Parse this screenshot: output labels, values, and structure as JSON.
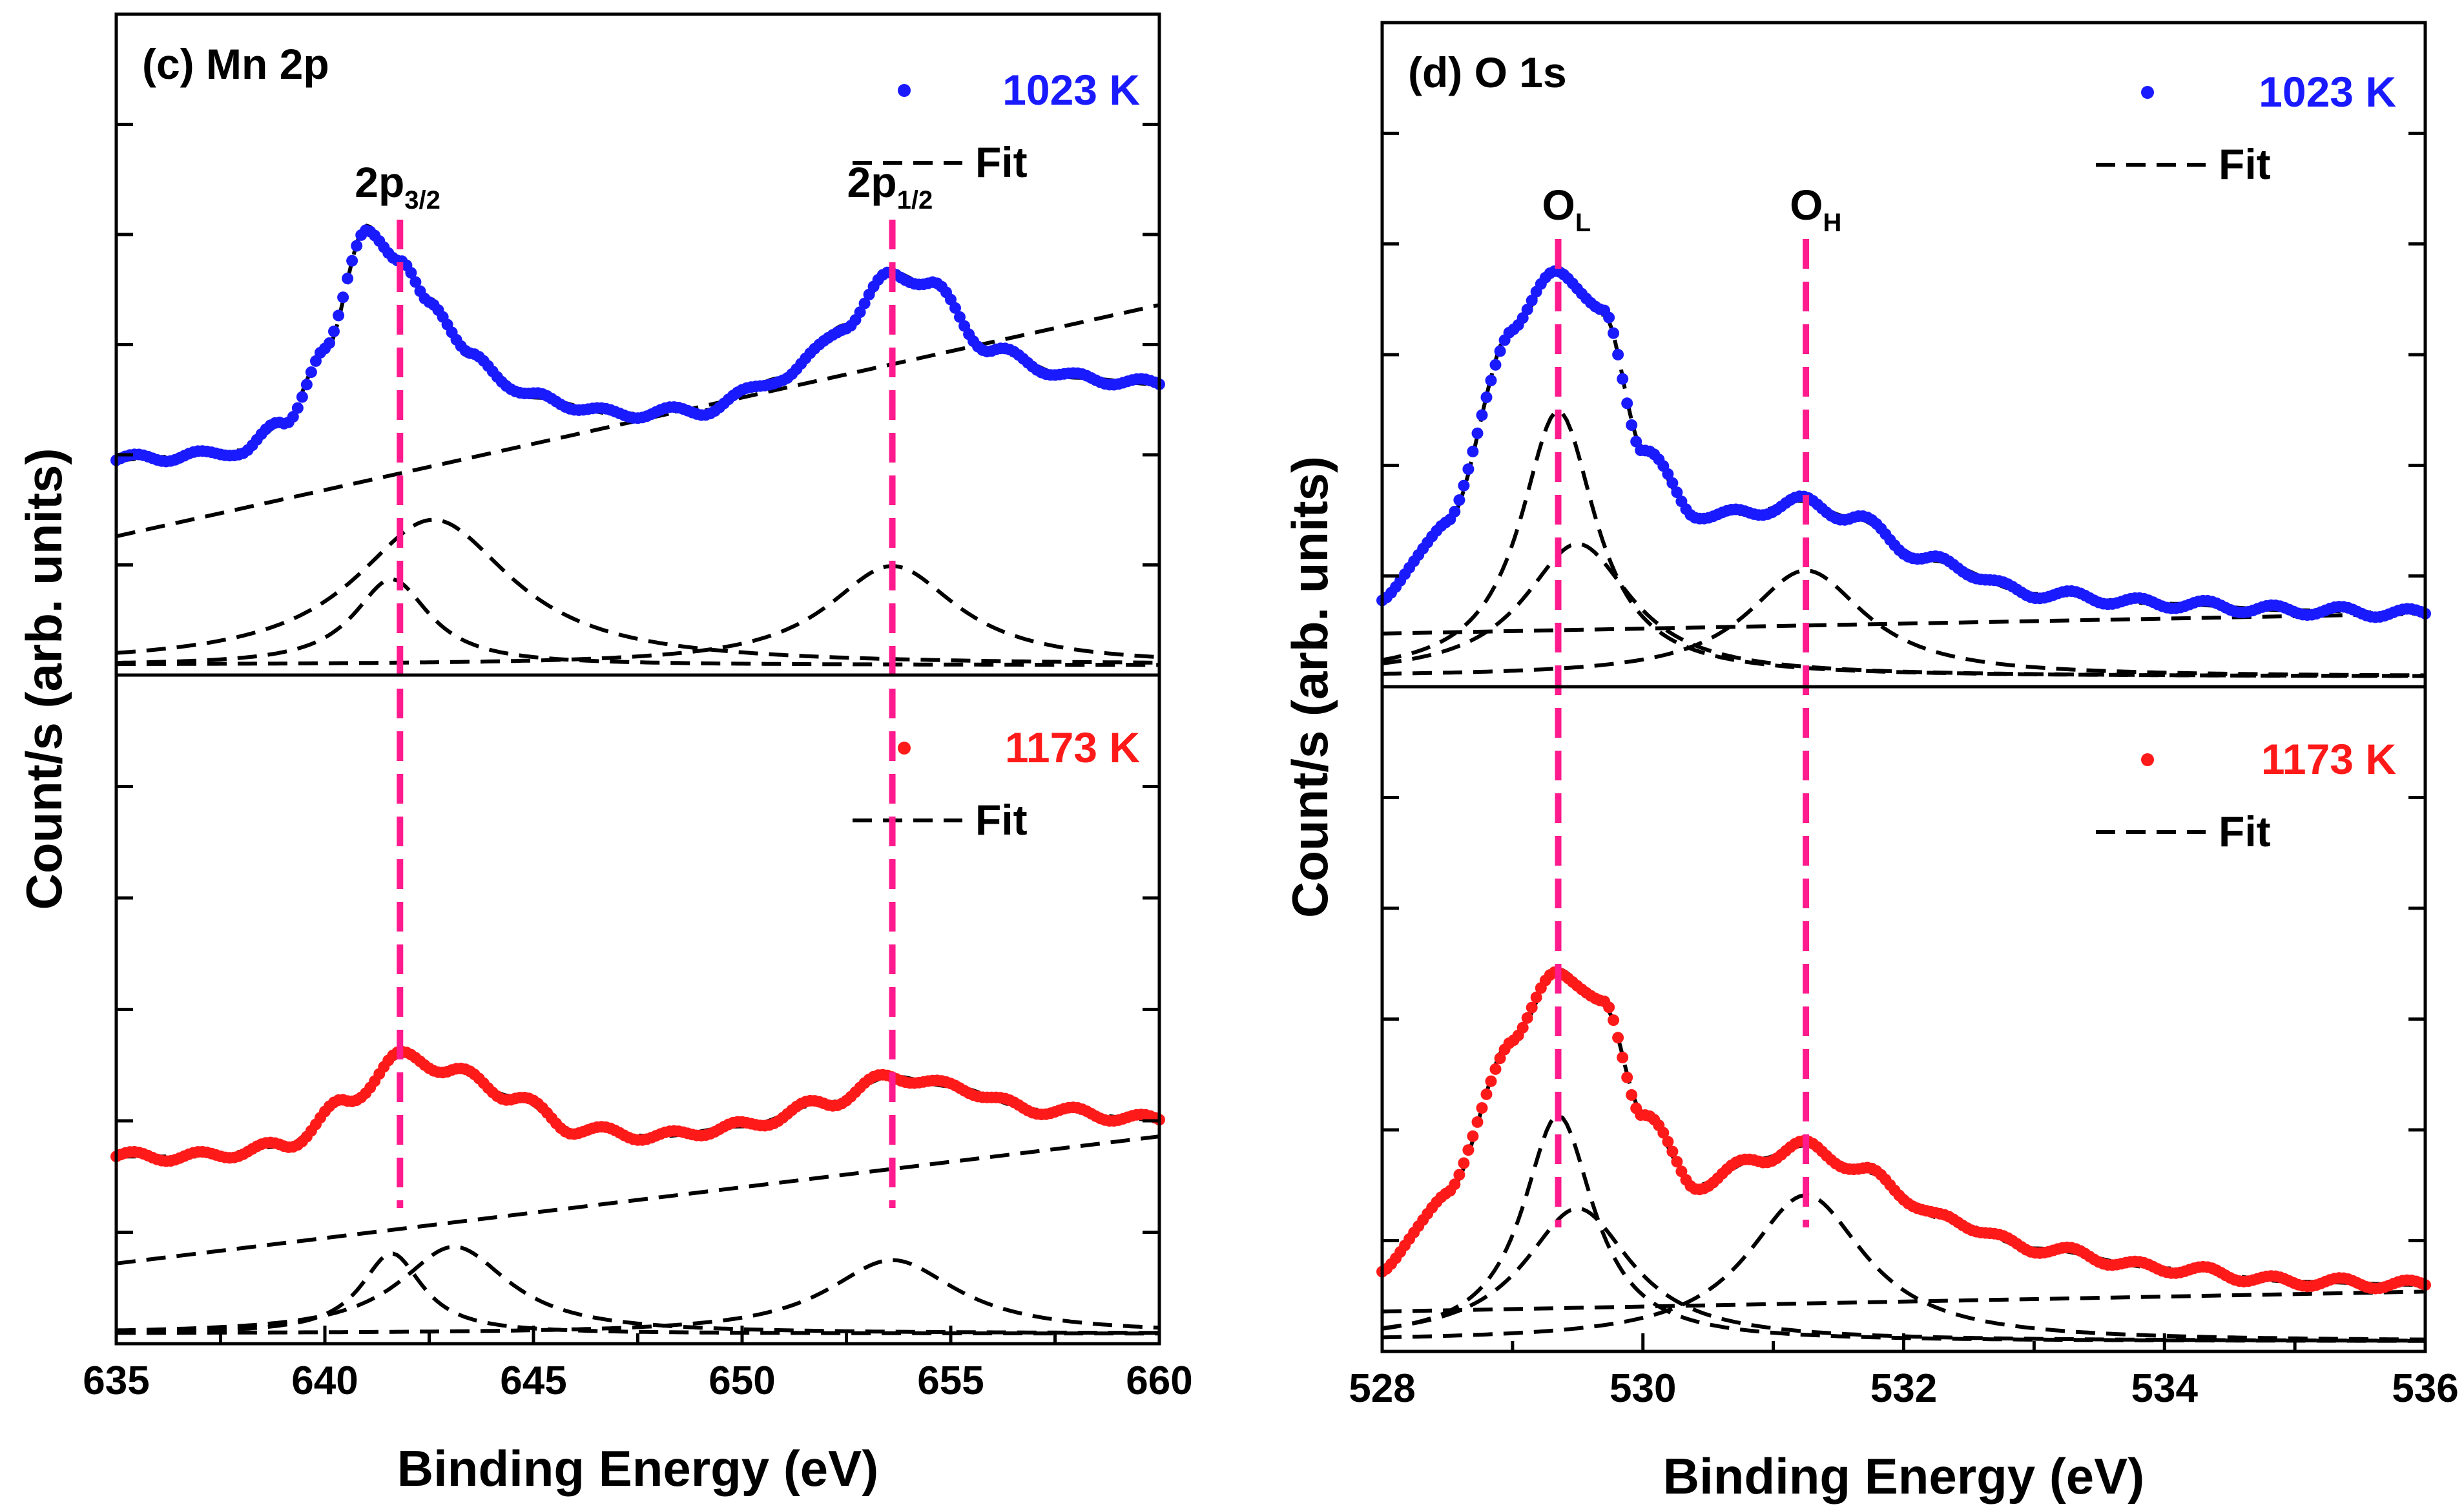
{
  "figure": {
    "xlabel": "Binding Energy (eV)",
    "ylabel": "Count/s (arb. units)"
  },
  "colors": {
    "blue": "#1a1aff",
    "red": "#ff1a1a",
    "peakline": "#ff1b8d",
    "fit": "#000000"
  },
  "chart_data": [
    {
      "id": "c",
      "type": "line",
      "title": "(c) Mn 2p",
      "xlabel": "Binding Energy (eV)",
      "ylabel": "Count/s (arb. units)",
      "xlim": [
        635,
        660
      ],
      "xticks": [
        635,
        640,
        645,
        650,
        655,
        660
      ],
      "peak_markers": [
        {
          "x": 641.8,
          "label_main": "2p",
          "label_sub": "3/2"
        },
        {
          "x": 653.6,
          "label_main": "2p",
          "label_sub": "1/2"
        }
      ],
      "subpanels": [
        {
          "temperature": "1023 K",
          "color": "#1a1aff",
          "fit_label": "Fit",
          "ylim": [
            0,
            10
          ],
          "background": {
            "x": [
              635,
              660
            ],
            "y": [
              2.1,
              5.6
            ]
          },
          "components": [
            {
              "center": 641.6,
              "amp": 1.3,
              "width": 1.1
            },
            {
              "center": 642.6,
              "amp": 2.2,
              "width": 2.3
            },
            {
              "center": 653.6,
              "amp": 1.5,
              "width": 1.9
            }
          ],
          "data_points": [
            [
              635,
              3.25
            ],
            [
              636,
              3.3
            ],
            [
              637,
              3.32
            ],
            [
              638,
              3.4
            ],
            [
              639,
              3.8
            ],
            [
              640,
              4.9
            ],
            [
              641,
              6.8
            ],
            [
              641.8,
              6.2
            ],
            [
              642.5,
              5.7
            ],
            [
              643.5,
              4.8
            ],
            [
              645,
              4.2
            ],
            [
              647,
              3.95
            ],
            [
              649,
              4.0
            ],
            [
              651,
              4.5
            ],
            [
              652.5,
              5.3
            ],
            [
              653.6,
              6.1
            ],
            [
              654.5,
              5.9
            ],
            [
              656,
              4.9
            ],
            [
              658,
              4.5
            ],
            [
              660,
              4.4
            ]
          ]
        },
        {
          "temperature": "1173 K",
          "color": "#ff1a1a",
          "fit_label": "Fit",
          "ylim": [
            0,
            10
          ],
          "background": {
            "x": [
              635,
              660
            ],
            "y": [
              1.2,
              3.1
            ]
          },
          "components": [
            {
              "center": 641.6,
              "amp": 1.2,
              "width": 0.9
            },
            {
              "center": 643.1,
              "amp": 1.3,
              "width": 1.6
            },
            {
              "center": 653.6,
              "amp": 1.1,
              "width": 1.9
            }
          ],
          "data_points": [
            [
              635,
              2.8
            ],
            [
              637,
              2.8
            ],
            [
              639,
              2.95
            ],
            [
              640.5,
              3.6
            ],
            [
              641.8,
              4.3
            ],
            [
              643,
              4.1
            ],
            [
              644.5,
              3.7
            ],
            [
              646,
              3.2
            ],
            [
              648,
              3.1
            ],
            [
              650,
              3.25
            ],
            [
              652,
              3.6
            ],
            [
              653.6,
              4.0
            ],
            [
              655,
              3.85
            ],
            [
              657,
              3.5
            ],
            [
              660,
              3.35
            ]
          ]
        }
      ]
    },
    {
      "id": "d",
      "type": "line",
      "title": "(d) O 1s",
      "xlabel": "Binding Energy (eV)",
      "ylabel": "Count/s (arb. units)",
      "xlim": [
        528,
        536
      ],
      "xticks": [
        528,
        530,
        532,
        534,
        536
      ],
      "peak_markers": [
        {
          "x": 529.35,
          "label_main": "O",
          "label_sub": "L"
        },
        {
          "x": 531.25,
          "label_main": "O",
          "label_sub": "H"
        }
      ],
      "subpanels": [
        {
          "temperature": "1023 K",
          "color": "#1a1aff",
          "fit_label": "Fit",
          "ylim": [
            0,
            10
          ],
          "background": {
            "x": [
              528,
              536
            ],
            "y": [
              0.8,
              1.1
            ]
          },
          "components": [
            {
              "center": 529.35,
              "amp": 4.0,
              "width": 0.35
            },
            {
              "center": 529.5,
              "amp": 2.0,
              "width": 0.5
            },
            {
              "center": 531.25,
              "amp": 1.6,
              "width": 0.55
            }
          ],
          "data_points": [
            [
              528,
              1.3
            ],
            [
              528.5,
              2.5
            ],
            [
              529,
              5.4
            ],
            [
              529.35,
              6.3
            ],
            [
              529.7,
              5.6
            ],
            [
              530,
              3.6
            ],
            [
              530.4,
              2.6
            ],
            [
              530.8,
              2.6
            ],
            [
              531.2,
              2.8
            ],
            [
              531.6,
              2.55
            ],
            [
              532.2,
              1.9
            ],
            [
              533,
              1.4
            ],
            [
              534,
              1.25
            ],
            [
              535,
              1.15
            ],
            [
              536,
              1.1
            ]
          ]
        },
        {
          "temperature": "1173 K",
          "color": "#ff1a1a",
          "fit_label": "Fit",
          "ylim": [
            0,
            10
          ],
          "background": {
            "x": [
              528,
              536
            ],
            "y": [
              0.6,
              0.9
            ]
          },
          "components": [
            {
              "center": 529.35,
              "amp": 3.4,
              "width": 0.33
            },
            {
              "center": 529.5,
              "amp": 2.0,
              "width": 0.5
            },
            {
              "center": 531.25,
              "amp": 2.2,
              "width": 0.55
            }
          ],
          "data_points": [
            [
              528,
              1.2
            ],
            [
              528.5,
              2.4
            ],
            [
              529,
              4.7
            ],
            [
              529.35,
              5.75
            ],
            [
              529.7,
              5.2
            ],
            [
              530,
              3.6
            ],
            [
              530.4,
              2.5
            ],
            [
              530.9,
              2.9
            ],
            [
              531.25,
              3.1
            ],
            [
              531.7,
              2.7
            ],
            [
              532.3,
              2.0
            ],
            [
              533,
              1.55
            ],
            [
              534,
              1.25
            ],
            [
              535,
              1.05
            ],
            [
              536,
              1.0
            ]
          ]
        }
      ]
    }
  ]
}
